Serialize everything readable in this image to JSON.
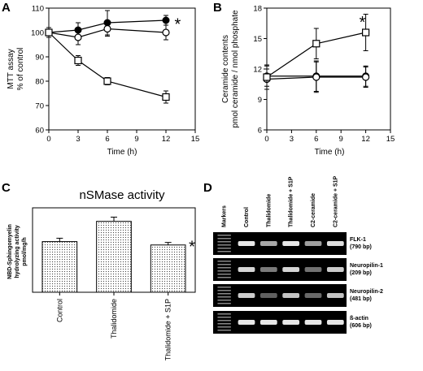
{
  "chart_data": [
    {
      "panel": "A",
      "type": "line",
      "title": "",
      "xlabel": "Time (h)",
      "ylabel_lines": [
        "MTT assay",
        "% of control"
      ],
      "xlim": [
        0,
        15
      ],
      "ylim": [
        60,
        110
      ],
      "xticks": [
        0,
        3,
        6,
        9,
        12,
        15
      ],
      "yticks": [
        60,
        70,
        80,
        90,
        100,
        110
      ],
      "series": [
        {
          "marker": "filled-circle",
          "x": [
            0,
            3,
            6,
            12
          ],
          "y": [
            100,
            101,
            104,
            105
          ],
          "err": [
            2,
            3,
            5,
            2
          ]
        },
        {
          "marker": "open-circle",
          "x": [
            0,
            3,
            6,
            12
          ],
          "y": [
            100,
            98,
            101.5,
            100
          ],
          "err": [
            2,
            3,
            3,
            3
          ]
        },
        {
          "marker": "open-square",
          "x": [
            0,
            3,
            6,
            12
          ],
          "y": [
            100,
            88.5,
            80,
            73.5
          ],
          "err": [
            2,
            2,
            1.5,
            2.5
          ]
        }
      ],
      "annotations": [
        {
          "text": "*",
          "x": 13.2,
          "y": 104.5
        }
      ]
    },
    {
      "panel": "B",
      "type": "line",
      "title": "",
      "xlabel": "Time (h)",
      "ylabel_lines": [
        "Ceramide contents",
        "pmol ceramide / nmol phosphate"
      ],
      "xlim": [
        0,
        15
      ],
      "ylim": [
        6,
        18
      ],
      "xticks": [
        0,
        3,
        6,
        9,
        12,
        15
      ],
      "yticks": [
        6,
        9,
        12,
        15,
        18
      ],
      "series": [
        {
          "marker": "filled-circle",
          "x": [
            0,
            6,
            12
          ],
          "y": [
            11.3,
            11.3,
            11.3
          ],
          "err": [
            1,
            1.5,
            1
          ]
        },
        {
          "marker": "open-circle",
          "x": [
            0,
            6,
            12
          ],
          "y": [
            11,
            11.2,
            11.2
          ],
          "err": [
            1,
            1.5,
            1
          ]
        },
        {
          "marker": "open-square",
          "x": [
            0,
            6,
            12
          ],
          "y": [
            11.2,
            14.5,
            15.6
          ],
          "err": [
            1.2,
            1.5,
            1.8
          ]
        }
      ],
      "annotations": [
        {
          "text": "*",
          "x": 11.6,
          "y": 16.9
        }
      ]
    },
    {
      "panel": "C",
      "type": "bar",
      "title": "nSMase activity",
      "ylabel_lines": [
        "NBD-Sphingomyelin",
        "hydrolyzing activity",
        "pmol/mg/h"
      ],
      "categories": [
        "Control",
        "Thalidomide",
        "Thalidomide + S1P"
      ],
      "values": [
        120,
        168,
        112
      ],
      "err": [
        8,
        10,
        6
      ],
      "ylim": [
        0,
        200
      ],
      "annotations": [
        {
          "text": "*",
          "category_index": 2
        }
      ]
    },
    {
      "panel": "D",
      "type": "table",
      "columns": [
        "Markers",
        "Control",
        "Thalidomide",
        "Thalidomide + S1P",
        "C2-ceramide",
        "C2-ceramide + S1P"
      ],
      "rows": [
        {
          "label": "FLK-1",
          "size": "(790 bp)",
          "intensity": [
            0.95,
            0.6,
            0.95,
            0.55,
            0.9
          ]
        },
        {
          "label": "Neuropilin-1",
          "size": "(209 bp)",
          "intensity": [
            0.85,
            0.35,
            0.85,
            0.3,
            0.8
          ]
        },
        {
          "label": "Neuropilin-2",
          "size": "(481 bp)",
          "intensity": [
            0.8,
            0.2,
            0.75,
            0.25,
            0.75
          ]
        },
        {
          "label": "ß-actin",
          "size": "(606 bp)",
          "intensity": [
            0.95,
            0.95,
            0.95,
            0.95,
            0.95
          ]
        }
      ]
    }
  ],
  "panel_labels": [
    "A",
    "B",
    "C",
    "D"
  ]
}
